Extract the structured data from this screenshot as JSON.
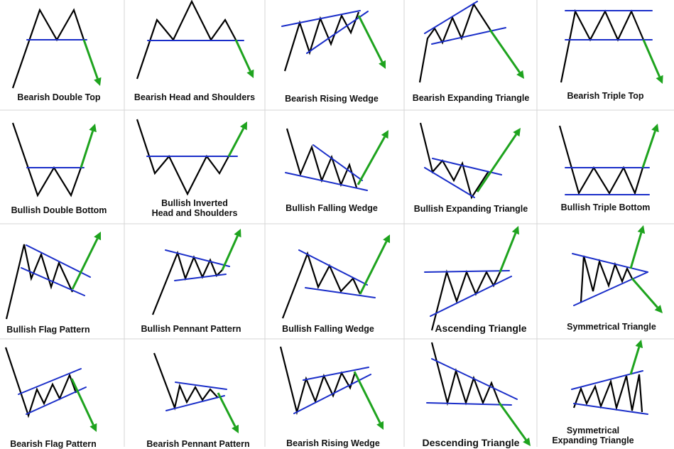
{
  "colors": {
    "price": "#000000",
    "trendline": "#1a2ec9",
    "bull": "#1ea31e",
    "bear": "#1ea31e",
    "grid": "#d6d6d6"
  },
  "patterns": [
    {
      "label": [
        "Bearish Double Top"
      ]
    },
    {
      "label": [
        "Bearish Head and Shoulders"
      ]
    },
    {
      "label": [
        "Bearish Rising Wedge"
      ]
    },
    {
      "label": [
        "Bearish Expanding Triangle"
      ]
    },
    {
      "label": [
        "Bearish Triple Top"
      ]
    },
    {
      "label": [
        "Bullish Double Bottom"
      ]
    },
    {
      "label": [
        "Bullish Inverted",
        "Head and Shoulders"
      ]
    },
    {
      "label": [
        "Bullish Falling Wedge"
      ]
    },
    {
      "label": [
        "Bullish Expanding Triangle"
      ]
    },
    {
      "label": [
        "Bullish Triple Bottom"
      ]
    },
    {
      "label": [
        "Bullish Flag Pattern"
      ]
    },
    {
      "label": [
        "Bullish Pennant Pattern"
      ]
    },
    {
      "label": [
        "Bullish Falling Wedge"
      ]
    },
    {
      "label": [
        "Ascending Triangle"
      ]
    },
    {
      "label": [
        "Symmetrical Triangle"
      ]
    },
    {
      "label": [
        "Bearish Flag Pattern"
      ]
    },
    {
      "label": [
        "Bearish Pennant Pattern"
      ]
    },
    {
      "label": [
        "Bearish Rising Wedge"
      ]
    },
    {
      "label": [
        "Descending Triangle"
      ]
    },
    {
      "label": [
        "Symmetrical",
        "Expanding Triangle"
      ]
    }
  ]
}
